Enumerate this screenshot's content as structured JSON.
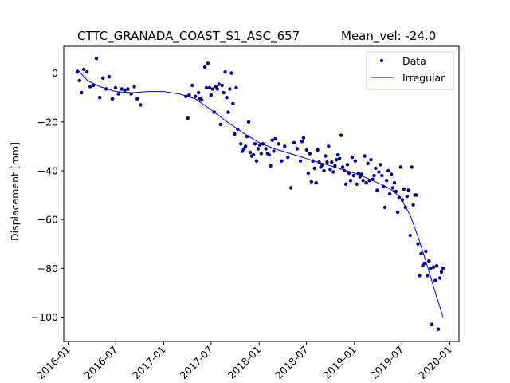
{
  "chart_data": {
    "type": "scatter",
    "title": "CTTC_GRANADA_COAST_S1_ASC_657",
    "subtitle": "Mean_vel: -24.0",
    "xlabel": "",
    "ylabel": "Displacement [mm]",
    "xlim": [
      "2015-12-15",
      "2020-02-05"
    ],
    "ylim": [
      -110,
      11
    ],
    "grid": false,
    "legend_position": "top-right",
    "x_ticks": [
      "2016-01",
      "2016-07",
      "2017-01",
      "2017-07",
      "2018-01",
      "2018-07",
      "2019-01",
      "2019-07",
      "2020-01"
    ],
    "y_ticks": [
      0,
      -20,
      -40,
      -60,
      -80,
      -100
    ],
    "colors": {
      "data": "#00008b",
      "fit": "#0000ff"
    },
    "series": [
      {
        "name": "Data",
        "type": "scatter",
        "points": [
          [
            "2016-02-05",
            0.5
          ],
          [
            "2016-02-13",
            -3
          ],
          [
            "2016-02-21",
            -8
          ],
          [
            "2016-03-01",
            1.5
          ],
          [
            "2016-03-13",
            0.5
          ],
          [
            "2016-03-25",
            -5.5
          ],
          [
            "2016-04-06",
            -5
          ],
          [
            "2016-04-18",
            6
          ],
          [
            "2016-05-01",
            -10
          ],
          [
            "2016-05-13",
            -2
          ],
          [
            "2016-05-25",
            -6.5
          ],
          [
            "2016-06-06",
            -1.5
          ],
          [
            "2016-06-18",
            -10.5
          ],
          [
            "2016-06-30",
            -6
          ],
          [
            "2016-07-12",
            -8.5
          ],
          [
            "2016-07-24",
            -6.5
          ],
          [
            "2016-08-05",
            -7
          ],
          [
            "2016-08-17",
            -6.5
          ],
          [
            "2016-08-29",
            -8.5
          ],
          [
            "2016-09-10",
            -5.5
          ],
          [
            "2016-09-22",
            -10.5
          ],
          [
            "2016-10-04",
            -13
          ],
          [
            "2017-03-27",
            -9.5
          ],
          [
            "2017-04-03",
            -18.5
          ],
          [
            "2017-04-08",
            -9
          ],
          [
            "2017-04-20",
            -5
          ],
          [
            "2017-05-02",
            -9.5
          ],
          [
            "2017-05-14",
            -8
          ],
          [
            "2017-05-20",
            -10.5
          ],
          [
            "2017-05-26",
            -11
          ],
          [
            "2017-06-07",
            2.5
          ],
          [
            "2017-06-13",
            -6
          ],
          [
            "2017-06-19",
            4
          ],
          [
            "2017-06-25",
            -6
          ],
          [
            "2017-07-01",
            -9
          ],
          [
            "2017-07-07",
            -6.5
          ],
          [
            "2017-07-13",
            -16
          ],
          [
            "2017-07-19",
            -5.5
          ],
          [
            "2017-07-25",
            -6.5
          ],
          [
            "2017-07-31",
            -4.5
          ],
          [
            "2017-08-06",
            -21
          ],
          [
            "2017-08-12",
            -5
          ],
          [
            "2017-08-18",
            -8
          ],
          [
            "2017-08-24",
            0.5
          ],
          [
            "2017-08-30",
            -10
          ],
          [
            "2017-09-05",
            -16
          ],
          [
            "2017-09-11",
            -6.5
          ],
          [
            "2017-09-17",
            0
          ],
          [
            "2017-09-23",
            -12.5
          ],
          [
            "2017-09-29",
            -25
          ],
          [
            "2017-10-05",
            -6
          ],
          [
            "2017-10-11",
            -23
          ],
          [
            "2017-10-23",
            -29
          ],
          [
            "2017-10-29",
            -32
          ],
          [
            "2017-11-04",
            -31
          ],
          [
            "2017-11-10",
            -30
          ],
          [
            "2017-11-16",
            -26
          ],
          [
            "2017-11-22",
            -20
          ],
          [
            "2017-11-28",
            -32.5
          ],
          [
            "2017-12-04",
            -34
          ],
          [
            "2017-12-10",
            -33.5
          ],
          [
            "2017-12-16",
            -29
          ],
          [
            "2017-12-22",
            -36
          ],
          [
            "2017-12-28",
            -31
          ],
          [
            "2018-01-03",
            -29.5
          ],
          [
            "2018-01-09",
            -33
          ],
          [
            "2018-01-15",
            -29
          ],
          [
            "2018-01-27",
            -31
          ],
          [
            "2018-02-02",
            -33
          ],
          [
            "2018-02-08",
            -33.5
          ],
          [
            "2018-02-14",
            -38
          ],
          [
            "2018-02-20",
            -27.5
          ],
          [
            "2018-02-26",
            -32
          ],
          [
            "2018-03-04",
            -27
          ],
          [
            "2018-03-16",
            -29
          ],
          [
            "2018-03-28",
            -36
          ],
          [
            "2018-04-09",
            -30
          ],
          [
            "2018-04-21",
            -34.5
          ],
          [
            "2018-05-03",
            -47
          ],
          [
            "2018-05-15",
            -28.5
          ],
          [
            "2018-05-27",
            -31
          ],
          [
            "2018-06-08",
            -36
          ],
          [
            "2018-06-14",
            -28
          ],
          [
            "2018-06-20",
            -26.5
          ],
          [
            "2018-07-02",
            -31.5
          ],
          [
            "2018-07-08",
            -41
          ],
          [
            "2018-07-14",
            -33
          ],
          [
            "2018-07-20",
            -44.5
          ],
          [
            "2018-07-26",
            -36
          ],
          [
            "2018-08-01",
            -39
          ],
          [
            "2018-08-07",
            -45
          ],
          [
            "2018-08-13",
            -31.5
          ],
          [
            "2018-08-19",
            -36.5
          ],
          [
            "2018-08-25",
            -38.5
          ],
          [
            "2018-08-31",
            -37.5
          ],
          [
            "2018-09-06",
            -40
          ],
          [
            "2018-09-12",
            -34
          ],
          [
            "2018-09-18",
            -36.5
          ],
          [
            "2018-09-24",
            -30
          ],
          [
            "2018-09-30",
            -39.5
          ],
          [
            "2018-10-06",
            -36.5
          ],
          [
            "2018-10-12",
            -40.5
          ],
          [
            "2018-10-18",
            -38
          ],
          [
            "2018-10-24",
            -35.5
          ],
          [
            "2018-10-30",
            -33.5
          ],
          [
            "2018-11-05",
            -35
          ],
          [
            "2018-11-11",
            -25.5
          ],
          [
            "2018-11-17",
            -38.5
          ],
          [
            "2018-11-23",
            -40
          ],
          [
            "2018-11-29",
            -45.5
          ],
          [
            "2018-12-05",
            -37.5
          ],
          [
            "2018-12-11",
            -41
          ],
          [
            "2018-12-17",
            -44
          ],
          [
            "2018-12-23",
            -34.5
          ],
          [
            "2018-12-29",
            -42
          ],
          [
            "2019-01-04",
            -36
          ],
          [
            "2019-01-10",
            -45.5
          ],
          [
            "2019-01-16",
            -41
          ],
          [
            "2019-01-22",
            -42.5
          ],
          [
            "2019-01-28",
            -41.5
          ],
          [
            "2019-02-03",
            -44
          ],
          [
            "2019-02-09",
            -34
          ],
          [
            "2019-02-15",
            -45
          ],
          [
            "2019-02-21",
            -37
          ],
          [
            "2019-02-27",
            -44
          ],
          [
            "2019-03-05",
            -35.5
          ],
          [
            "2019-03-11",
            -43.5
          ],
          [
            "2019-03-17",
            -42
          ],
          [
            "2019-03-23",
            -39
          ],
          [
            "2019-03-29",
            -48
          ],
          [
            "2019-04-04",
            -40.5
          ],
          [
            "2019-04-10",
            -37.5
          ],
          [
            "2019-04-16",
            -42
          ],
          [
            "2019-04-22",
            -46.5
          ],
          [
            "2019-04-28",
            -55
          ],
          [
            "2019-05-04",
            -44
          ],
          [
            "2019-05-10",
            -40
          ],
          [
            "2019-05-16",
            -49.5
          ],
          [
            "2019-05-22",
            -41.5
          ],
          [
            "2019-05-28",
            -47
          ],
          [
            "2019-06-03",
            -45
          ],
          [
            "2019-06-09",
            -48.5
          ],
          [
            "2019-06-15",
            -57
          ],
          [
            "2019-06-21",
            -51
          ],
          [
            "2019-06-27",
            -38.5
          ],
          [
            "2019-07-03",
            -52
          ],
          [
            "2019-07-09",
            -47.5
          ],
          [
            "2019-07-15",
            -55
          ],
          [
            "2019-07-21",
            -50.5
          ],
          [
            "2019-07-27",
            -48
          ],
          [
            "2019-08-02",
            -66.5
          ],
          [
            "2019-08-08",
            -38.5
          ],
          [
            "2019-08-14",
            -54
          ],
          [
            "2019-08-20",
            -50
          ],
          [
            "2019-08-26",
            -50
          ],
          [
            "2019-09-01",
            -70
          ],
          [
            "2019-09-07",
            -83
          ],
          [
            "2019-09-13",
            -74
          ],
          [
            "2019-09-19",
            -79
          ],
          [
            "2019-09-25",
            -78
          ],
          [
            "2019-10-01",
            -73
          ],
          [
            "2019-10-07",
            -83
          ],
          [
            "2019-10-13",
            -77
          ],
          [
            "2019-10-19",
            -80
          ],
          [
            "2019-10-25",
            -103
          ],
          [
            "2019-10-31",
            -79.5
          ],
          [
            "2019-11-06",
            -85
          ],
          [
            "2019-11-12",
            -79
          ],
          [
            "2019-11-18",
            -105
          ],
          [
            "2019-11-24",
            -84
          ],
          [
            "2019-11-30",
            -81.5
          ],
          [
            "2019-12-06",
            -80
          ]
        ]
      },
      {
        "name": "Irregular",
        "type": "line",
        "points": [
          [
            "2016-02-05",
            1.5
          ],
          [
            "2016-03-15",
            -3
          ],
          [
            "2016-05-01",
            -5.5
          ],
          [
            "2016-07-01",
            -7.5
          ],
          [
            "2016-09-01",
            -8
          ],
          [
            "2016-11-01",
            -7.5
          ],
          [
            "2017-01-01",
            -7.5
          ],
          [
            "2017-03-01",
            -8.5
          ],
          [
            "2017-05-01",
            -10.5
          ],
          [
            "2017-07-01",
            -15
          ],
          [
            "2017-09-01",
            -20
          ],
          [
            "2017-11-01",
            -24.5
          ],
          [
            "2018-01-01",
            -28.5
          ],
          [
            "2018-03-01",
            -31
          ],
          [
            "2018-05-01",
            -33
          ],
          [
            "2018-07-01",
            -35
          ],
          [
            "2018-09-01",
            -37
          ],
          [
            "2018-11-01",
            -39
          ],
          [
            "2019-01-01",
            -41
          ],
          [
            "2019-03-01",
            -43.5
          ],
          [
            "2019-05-01",
            -46.5
          ],
          [
            "2019-06-01",
            -48.5
          ],
          [
            "2019-07-01",
            -52
          ],
          [
            "2019-08-01",
            -58
          ],
          [
            "2019-09-01",
            -67
          ],
          [
            "2019-10-01",
            -77
          ],
          [
            "2019-11-01",
            -88
          ],
          [
            "2019-12-06",
            -100
          ]
        ]
      }
    ]
  }
}
